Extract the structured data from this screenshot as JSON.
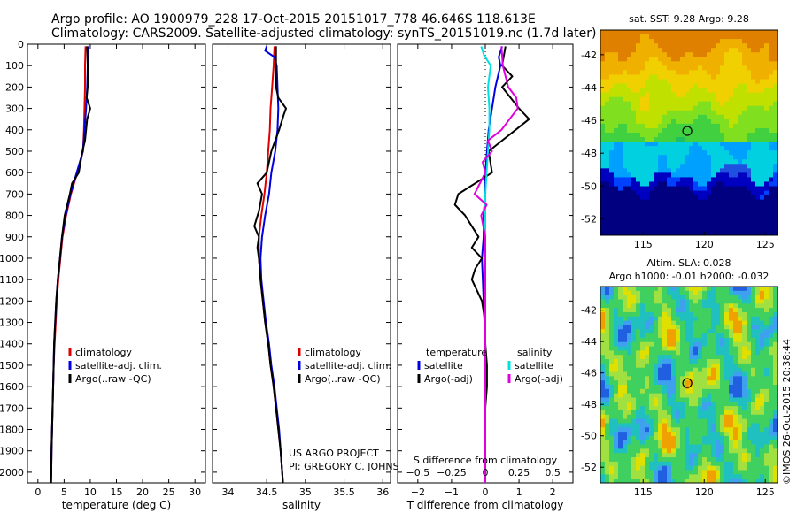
{
  "header": {
    "line1": "Argo profile: AO 1900979_228 17-Oct-2015 20151017_778 46.646S 118.613E",
    "line2": "Climatology: CARS2009. Satellite-adjusted climatology: synTS_20151019.nc (1.7d later)"
  },
  "colors": {
    "climatology": "#e00000",
    "satellite": "#0000e0",
    "argo": "#000000",
    "sat_salinity": "#00e0e0",
    "argo_salinity": "#e000e0"
  },
  "chart_data": [
    {
      "type": "line",
      "xlabel": "temperature (deg C)",
      "ylabel": "",
      "xlim": [
        -2,
        32
      ],
      "ylim": [
        2050,
        0
      ],
      "xticks": [
        0,
        5,
        10,
        15,
        20,
        25,
        30
      ],
      "xtick_labels": [
        "0",
        "5",
        "10",
        "15",
        "20",
        "25",
        "30"
      ],
      "yticks": [
        0,
        100,
        200,
        300,
        400,
        500,
        600,
        700,
        800,
        900,
        1000,
        1100,
        1200,
        1300,
        1400,
        1500,
        1600,
        1700,
        1800,
        1900,
        2000
      ],
      "ytick_labels": [
        "0",
        "100",
        "200",
        "300",
        "400",
        "500",
        "600",
        "700",
        "800",
        "900",
        "1000",
        "1100",
        "1200",
        "1300",
        "1400",
        "1500",
        "1600",
        "1700",
        "1800",
        "1900",
        "2000"
      ],
      "legend": {
        "placement": "middle-left",
        "entries": [
          "climatology",
          "satellite-adj. clim.",
          "Argo(..raw -QC)"
        ]
      },
      "series": [
        {
          "name": "climatology",
          "color": "#e00000",
          "depth": [
            10,
            100,
            200,
            300,
            400,
            500,
            600,
            700,
            800,
            900,
            1000,
            1100,
            1200,
            1300,
            1400,
            1500,
            1600,
            1700,
            1800,
            1900,
            2000,
            2050
          ],
          "values": [
            9.1,
            9.0,
            9.0,
            8.9,
            8.8,
            8.6,
            7.5,
            6.3,
            5.4,
            4.7,
            4.3,
            3.9,
            3.6,
            3.4,
            3.2,
            3.0,
            2.9,
            2.8,
            2.7,
            2.6,
            2.55,
            2.5
          ]
        },
        {
          "name": "satellite-adj. clim.",
          "color": "#0000e0",
          "depth": [
            10,
            100,
            200,
            300,
            400,
            500,
            600,
            700,
            800,
            900,
            1000,
            1100,
            1200,
            1300,
            1400,
            1500,
            1600,
            1700,
            1800,
            1900,
            2000,
            2050
          ],
          "values": [
            9.6,
            9.5,
            9.4,
            9.2,
            8.9,
            8.6,
            7.4,
            6.2,
            5.3,
            4.6,
            4.2,
            3.8,
            3.5,
            3.3,
            3.1,
            3.0,
            2.9,
            2.8,
            2.7,
            2.6,
            2.55,
            2.5
          ]
        },
        {
          "name": "Argo(..raw -QC)",
          "color": "#000000",
          "depth": [
            10,
            100,
            200,
            250,
            300,
            350,
            400,
            450,
            500,
            600,
            650,
            700,
            800,
            900,
            1000,
            1100,
            1200,
            1300,
            1400,
            1500,
            1600,
            1700,
            1800,
            1900,
            2000,
            2050
          ],
          "values": [
            9.4,
            9.5,
            9.5,
            9.3,
            10.0,
            9.4,
            9.2,
            9.0,
            8.5,
            7.8,
            6.5,
            6.1,
            5.1,
            4.6,
            4.2,
            3.8,
            3.5,
            3.3,
            3.1,
            3.0,
            2.9,
            2.8,
            2.7,
            2.6,
            2.55,
            2.5
          ]
        }
      ]
    },
    {
      "type": "line",
      "xlabel": "salinity",
      "ylabel": "",
      "xlim": [
        33.8,
        36.1
      ],
      "ylim": [
        2050,
        0
      ],
      "xticks": [
        34,
        34.5,
        35,
        35.5,
        36
      ],
      "xtick_labels": [
        "34",
        "34.5",
        "35",
        "35.5",
        "36"
      ],
      "legend": {
        "placement": "middle-right",
        "entries": [
          "climatology",
          "satellite-adj. clim.",
          "Argo(..raw -QC)"
        ]
      },
      "annotation": [
        "US ARGO PROJECT",
        "PI: GREGORY C. JOHNSON"
      ],
      "series": [
        {
          "name": "climatology",
          "color": "#e00000",
          "depth": [
            10,
            100,
            200,
            300,
            400,
            500,
            600,
            700,
            800,
            900,
            1000,
            1100,
            1200,
            1300,
            1400,
            1500,
            1600,
            1700,
            1800,
            1900,
            2000,
            2050
          ],
          "values": [
            34.6,
            34.59,
            34.57,
            34.55,
            34.54,
            34.52,
            34.5,
            34.47,
            34.43,
            34.4,
            34.4,
            34.42,
            34.45,
            34.48,
            34.52,
            34.55,
            34.59,
            34.62,
            34.65,
            34.68,
            34.7,
            34.71
          ]
        },
        {
          "name": "satellite-adj. clim.",
          "color": "#0000e0",
          "depth": [
            10,
            30,
            60,
            100,
            200,
            300,
            400,
            500,
            600,
            700,
            800,
            900,
            1000,
            1100,
            1200,
            1300,
            1400,
            1500,
            1600,
            1700,
            1800,
            1900,
            2000,
            2050
          ],
          "values": [
            34.5,
            34.48,
            34.6,
            34.63,
            34.64,
            34.65,
            34.64,
            34.61,
            34.56,
            34.53,
            34.48,
            34.44,
            34.42,
            34.43,
            34.46,
            34.49,
            34.53,
            34.56,
            34.6,
            34.63,
            34.66,
            34.68,
            34.7,
            34.71
          ]
        },
        {
          "name": "Argo(..raw -QC)",
          "color": "#000000",
          "depth": [
            10,
            100,
            200,
            250,
            300,
            330,
            400,
            500,
            600,
            650,
            700,
            780,
            850,
            900,
            950,
            1000,
            1100,
            1200,
            1300,
            1400,
            1500,
            1600,
            1700,
            1800,
            1900,
            2000,
            2050
          ],
          "values": [
            34.62,
            34.62,
            34.62,
            34.65,
            34.75,
            34.72,
            34.66,
            34.56,
            34.5,
            34.38,
            34.44,
            34.4,
            34.34,
            34.4,
            34.38,
            34.4,
            34.42,
            34.45,
            34.48,
            34.52,
            34.55,
            34.59,
            34.62,
            34.65,
            34.68,
            34.7,
            34.71
          ]
        }
      ]
    },
    {
      "type": "line",
      "xlabel": "T difference from climatology",
      "xlabel2": "S difference from climatology",
      "ylabel": "",
      "xlim": [
        -2.6,
        2.6
      ],
      "ylim": [
        2050,
        0
      ],
      "xticks": [
        -2,
        -1,
        0,
        1,
        2
      ],
      "xtick_labels": [
        "−2",
        "−1",
        "0",
        "1",
        "2"
      ],
      "xticks2": [
        -0.5,
        -0.25,
        0,
        0.25,
        0.5
      ],
      "xtick_labels2": [
        "−0.5",
        "−0.25",
        "0",
        "0.25",
        "0.5"
      ],
      "legend": {
        "placement": "middle",
        "temperature_title": "temperature",
        "temperature_entries": [
          "satellite",
          "Argo(-adj)"
        ],
        "salinity_title": "salinity",
        "salinity_entries": [
          "satellite",
          "Argo(-adj)"
        ]
      },
      "series": [
        {
          "name": "satellite",
          "group": "temperature",
          "color": "#0000e0",
          "depth": [
            10,
            60,
            100,
            200,
            300,
            400,
            500,
            600,
            700,
            800,
            900,
            1000,
            1200,
            1400,
            1600,
            1800,
            2000,
            2050
          ],
          "values": [
            0.5,
            0.4,
            0.45,
            0.3,
            0.2,
            0.1,
            0.05,
            0.0,
            0.0,
            -0.05,
            -0.05,
            -0.1,
            -0.05,
            0.0,
            0.0,
            0.0,
            0.0,
            0.0
          ]
        },
        {
          "name": "Argo(-adj)",
          "group": "temperature",
          "color": "#000000",
          "depth": [
            10,
            100,
            150,
            200,
            300,
            350,
            400,
            450,
            500,
            600,
            700,
            750,
            800,
            850,
            900,
            950,
            1000,
            1050,
            1100,
            1200,
            1300,
            1400,
            1500,
            1600,
            1700,
            1800,
            1900,
            2000,
            2050
          ],
          "values": [
            0.6,
            0.5,
            0.8,
            0.5,
            1.0,
            1.3,
            0.9,
            0.5,
            0.1,
            0.2,
            -0.8,
            -0.9,
            -0.6,
            -0.4,
            -0.2,
            -0.4,
            -0.1,
            -0.3,
            -0.4,
            -0.1,
            0.0,
            0.0,
            0.05,
            0.05,
            0.0,
            0.0,
            0.0,
            0.0,
            0.0
          ]
        },
        {
          "name": "satellite",
          "group": "salinity",
          "color": "#00e0e0",
          "depth": [
            10,
            50,
            100,
            200,
            300,
            400,
            500,
            600,
            700,
            800,
            900,
            1000,
            1200,
            1400,
            1600,
            1800,
            2000,
            2050
          ],
          "values": [
            -0.03,
            -0.01,
            0.04,
            0.02,
            0.03,
            0.03,
            0.02,
            0.01,
            0.0,
            0.0,
            0.0,
            0.0,
            0.0,
            0.0,
            0.0,
            0.0,
            0.0,
            0.0
          ]
        },
        {
          "name": "Argo(-adj)",
          "group": "salinity",
          "color": "#e000e0",
          "depth": [
            10,
            100,
            200,
            250,
            300,
            350,
            400,
            450,
            500,
            550,
            600,
            700,
            750,
            800,
            900,
            1000,
            1200,
            1400,
            1600,
            1800,
            2000,
            2050
          ],
          "values": [
            0.12,
            0.13,
            0.17,
            0.23,
            0.24,
            0.18,
            0.12,
            0.02,
            0.05,
            -0.02,
            0.0,
            -0.08,
            0.01,
            -0.03,
            0.0,
            0.0,
            0.0,
            0.0,
            0.0,
            0.0,
            0.0,
            0.0
          ]
        }
      ]
    },
    {
      "type": "heatmap",
      "title": "sat. SST: 9.28 Argo: 9.28",
      "xlim": [
        111.5,
        126
      ],
      "ylim": [
        -53,
        -40.5
      ],
      "xticks": [
        115,
        120,
        125
      ],
      "xtick_labels": [
        "115",
        "120",
        "125"
      ],
      "yticks": [
        -42,
        -44,
        -46,
        -48,
        -50,
        -52
      ],
      "ytick_labels": [
        "-42",
        "-44",
        "-46",
        "-48",
        "-50",
        "-52"
      ],
      "marker": {
        "lon": 118.613,
        "lat": -46.646
      }
    },
    {
      "type": "heatmap",
      "title": "Altim. SLA: 0.028",
      "subtitle": "Argo h1000: -0.01 h2000: -0.032",
      "xlim": [
        111.5,
        126
      ],
      "ylim": [
        -53,
        -40.5
      ],
      "xticks": [
        115,
        120,
        125
      ],
      "xtick_labels": [
        "115",
        "120",
        "125"
      ],
      "yticks": [
        -42,
        -44,
        -46,
        -48,
        -50,
        -52
      ],
      "ytick_labels": [
        "-42",
        "-44",
        "-46",
        "-48",
        "-50",
        "-52"
      ],
      "marker": {
        "lon": 118.613,
        "lat": -46.646
      }
    }
  ],
  "credit": "©IMOS 26-Oct-2015 20:38:44"
}
